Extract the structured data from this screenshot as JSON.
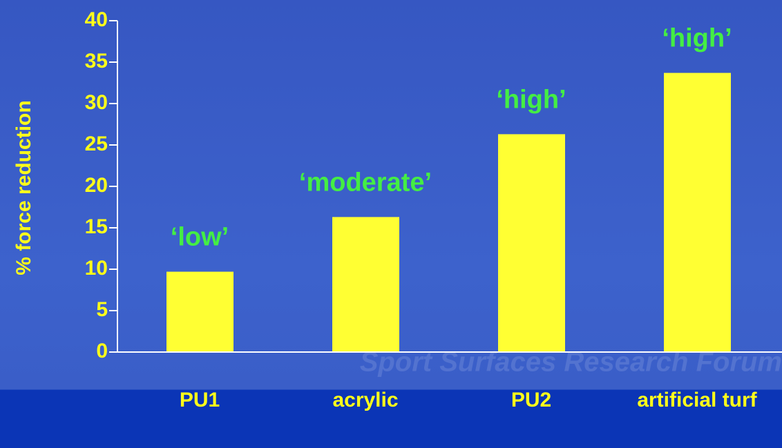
{
  "chart_data": {
    "type": "bar",
    "y_label": "% force reduction",
    "watermark": "Sport Surfaces Research Forum",
    "categories": [
      "PU1",
      "acrylic",
      "PU2",
      "artificial turf"
    ],
    "values": [
      9.7,
      16.3,
      26.3,
      33.7
    ],
    "annotations": [
      "‘low’",
      "‘moderate’",
      "‘high’",
      "‘high’"
    ],
    "color": "#ffff33",
    "ylim": [
      0,
      40
    ],
    "yticks": [
      0,
      5,
      10,
      15,
      20,
      25,
      30,
      35,
      40
    ]
  }
}
